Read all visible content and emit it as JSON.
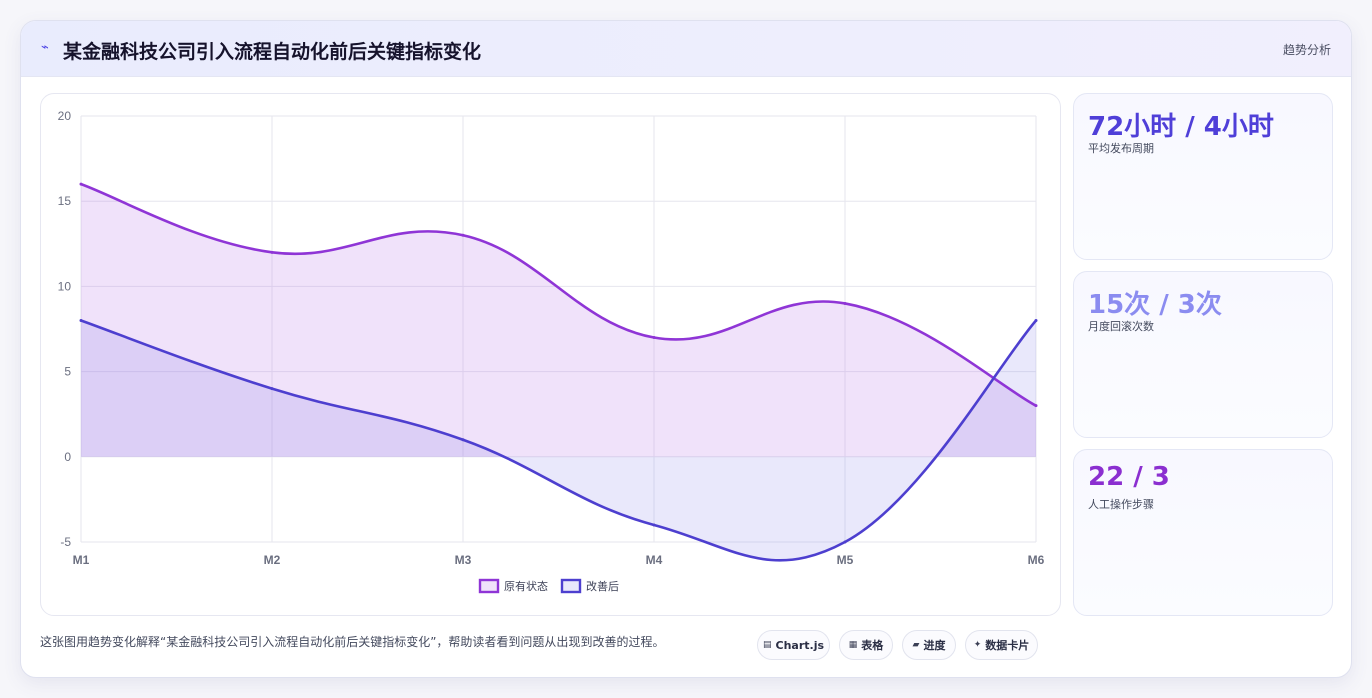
{
  "header": {
    "icon": "trend-line-icon",
    "title": "某金融科技公司引入流程自动化前后关键指标变化",
    "tag": "趋势分析"
  },
  "kpis": [
    {
      "value": "72小时 / 4小时",
      "label": "平均发布周期",
      "color": "#4f3fd8"
    },
    {
      "value": "15次 / 3次",
      "label": "月度回滚次数",
      "color": "#8b8cf0"
    },
    {
      "value": "22 / 3",
      "label": "人工操作步骤",
      "color": "#8b2fd0"
    }
  ],
  "footer": {
    "description": "这张图用趋势变化解释“某金融科技公司引入流程自动化前后关键指标变化”，帮助读者看到问题从出现到改善的过程。",
    "chips": [
      {
        "icon": "▤",
        "icon_name": "chart-icon",
        "label": "Chart.js"
      },
      {
        "icon": "▦",
        "icon_name": "table-icon",
        "label": "表格"
      },
      {
        "icon": "▰",
        "icon_name": "progress-icon",
        "label": "进度"
      },
      {
        "icon": "✦",
        "icon_name": "sparkle-icon",
        "label": "数据卡片"
      }
    ]
  },
  "chart_data": {
    "type": "area",
    "categories": [
      "M1",
      "M2",
      "M3",
      "M4",
      "M5",
      "M6"
    ],
    "ylim": [
      -5,
      20
    ],
    "yticks": [
      -5,
      0,
      5,
      10,
      15,
      20
    ],
    "grid": true,
    "legend_position": "bottom",
    "series": [
      {
        "name": "原有状态",
        "values": [
          16,
          12,
          13,
          7,
          9,
          3
        ],
        "color": "#8f35d6",
        "fill": "rgba(182, 110, 230, 0.20)"
      },
      {
        "name": "改善后",
        "values": [
          8,
          4,
          1,
          -4,
          -5,
          8
        ],
        "color": "#4d3fcf",
        "fill": "rgba(120, 110, 230, 0.16)"
      }
    ]
  }
}
